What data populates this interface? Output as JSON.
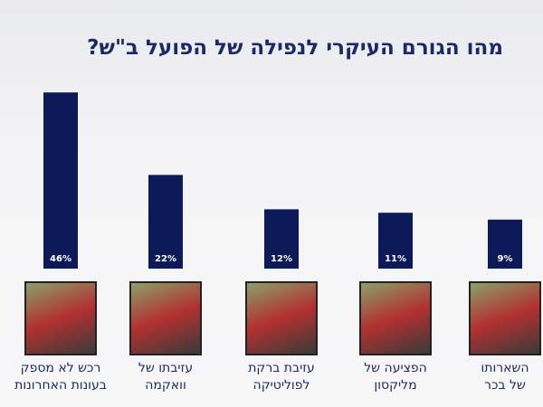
{
  "chart_data": {
    "type": "bar",
    "title": "מהו הגורם העיקרי לנפילה של הפועל ב\"ש?",
    "categories": [
      "רכש לא מספק\nבעונות האחרונות",
      "עזיבתו של\nוואקמה",
      "עזיבת ברקת\nלפוליטיקה",
      "הפציעה של\nמליקסון",
      "השארותו\nשל בכר"
    ],
    "values": [
      46,
      22,
      12,
      11,
      9
    ],
    "value_labels": [
      "46%",
      "22%",
      "12%",
      "11%",
      "9%"
    ],
    "color": "#0d1a5a"
  }
}
